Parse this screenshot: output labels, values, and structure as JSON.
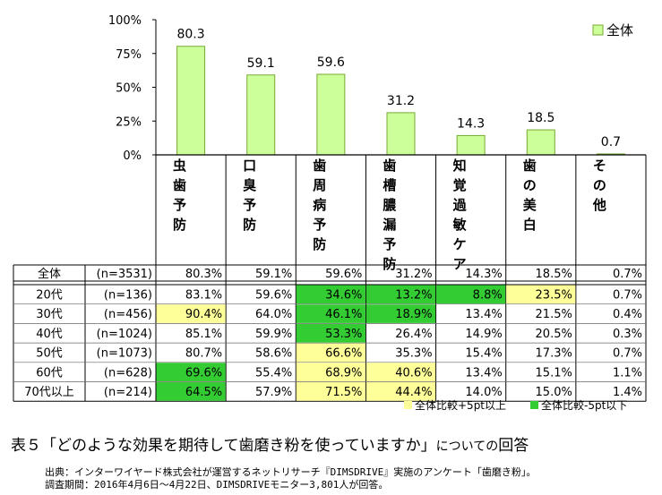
{
  "chart_data": {
    "type": "bar",
    "yticks": [
      "100%",
      "75%",
      "50%",
      "25%",
      "0%"
    ],
    "ylim": [
      0,
      100
    ],
    "categories": [
      "虫歯予防",
      "口臭予防",
      "歯周病予防",
      "歯槽膿漏予防",
      "知覚過敏ケア",
      "歯の美白",
      "その他"
    ],
    "series": [
      {
        "name": "全体",
        "values": [
          80.3,
          59.1,
          59.6,
          31.2,
          14.3,
          18.5,
          0.7
        ],
        "labels": [
          "80.3",
          "59.1",
          "59.6",
          "31.2",
          "14.3",
          "18.5",
          "0.7"
        ]
      }
    ],
    "legend_position": "top-right",
    "bar_color": "#ccff99",
    "bar_stroke": "#77aa33",
    "table": {
      "total_row": {
        "label": "全体",
        "n": "(n=3531)",
        "values": [
          "80.3%",
          "59.1%",
          "59.6%",
          "31.2%",
          "14.3%",
          "18.5%",
          "0.7%"
        ]
      },
      "rows": [
        {
          "label": "20代",
          "n": "(n=136)",
          "values": [
            "83.1%",
            "59.6%",
            "34.6%",
            "13.2%",
            "8.8%",
            "23.5%",
            "0.7%"
          ],
          "highlight": [
            "",
            "",
            "low",
            "low",
            "low",
            "high",
            ""
          ]
        },
        {
          "label": "30代",
          "n": "(n=456)",
          "values": [
            "90.4%",
            "64.0%",
            "46.1%",
            "18.9%",
            "13.4%",
            "21.5%",
            "0.4%"
          ],
          "highlight": [
            "high",
            "",
            "low",
            "low",
            "",
            "",
            ""
          ]
        },
        {
          "label": "40代",
          "n": "(n=1024)",
          "values": [
            "85.1%",
            "59.9%",
            "53.3%",
            "26.4%",
            "14.9%",
            "20.5%",
            "0.3%"
          ],
          "highlight": [
            "",
            "",
            "low",
            "",
            "",
            "",
            ""
          ]
        },
        {
          "label": "50代",
          "n": "(n=1073)",
          "values": [
            "80.7%",
            "58.6%",
            "66.6%",
            "35.3%",
            "15.4%",
            "17.3%",
            "0.7%"
          ],
          "highlight": [
            "",
            "",
            "high",
            "",
            "",
            "",
            ""
          ]
        },
        {
          "label": "60代",
          "n": "(n=628)",
          "values": [
            "69.6%",
            "55.4%",
            "68.9%",
            "40.6%",
            "13.4%",
            "15.1%",
            "1.1%"
          ],
          "highlight": [
            "low",
            "",
            "high",
            "high",
            "",
            "",
            ""
          ]
        },
        {
          "label": "70代以上",
          "n": "(n=214)",
          "values": [
            "64.5%",
            "57.9%",
            "71.5%",
            "44.4%",
            "14.0%",
            "15.0%",
            "1.4%"
          ],
          "highlight": [
            "low",
            "",
            "high",
            "high",
            "",
            "",
            ""
          ]
        }
      ],
      "highlight_colors": {
        "high": "#ffff99",
        "low": "#33cc33"
      },
      "highlight_legend": [
        {
          "key": "high",
          "label": "全体比較+5pt以上"
        },
        {
          "key": "low",
          "label": "全体比較-5pt以下"
        }
      ]
    }
  },
  "caption": {
    "prefix": "表５「",
    "question": "どのような効果を期待して歯磨き粉を使っていますか",
    "suffix": "」",
    "tail_small": "についての",
    "tail": "回答"
  },
  "source": {
    "line1": "出典：インターワイヤード株式会社が運営するネットリサーチ『DIMSDRIVE』実施のアンケート「歯磨き粉」。",
    "line2": "調査期間：2016年4月6日～4月22日、DIMSDRIVEモニター3,801人が回答。"
  }
}
